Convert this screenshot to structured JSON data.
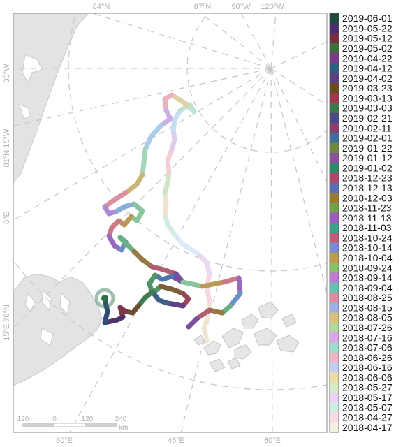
{
  "map": {
    "top_labels": [
      "84°N",
      "87°N",
      "90°W",
      "120°W"
    ],
    "bottom_labels": [
      "30°E",
      "45°E",
      "60°E"
    ],
    "left_labels": [
      "30°W",
      "81°N 15°W",
      "0°E",
      "15°E 78°N"
    ],
    "scale_bar": {
      "ticks": [
        "120",
        "0",
        "120",
        "240"
      ],
      "unit": "km"
    },
    "track_colors": [
      "#f0e6cf",
      "#f5d5dc",
      "#e6d6f2",
      "#d7eafa",
      "#cfe9e3",
      "#ede0c8",
      "#c9e3c3",
      "#f3c9d0",
      "#dcc7ec",
      "#bfdcf0",
      "#b7e0cb",
      "#dccd9a",
      "#eaa8b4",
      "#c7a7e3",
      "#a3c8ea",
      "#9ad2b3",
      "#c6ad6a",
      "#d98494",
      "#a57fcf",
      "#7ba7d8",
      "#7cbf93",
      "#b18f45",
      "#c96b7b",
      "#8a5bb8",
      "#5a86c4",
      "#5ea777",
      "#8c6b32",
      "#a84d62",
      "#6b3c96",
      "#3d689f",
      "#3f8a57",
      "#6d4f22",
      "#8c3449",
      "#522a77",
      "#2c4f80",
      "#2d6e40",
      "#5a3c17",
      "#6e2236",
      "#3f1e5d",
      "#1f3b63"
    ],
    "final_marker_color": "#2d7048"
  },
  "legend": {
    "dates": [
      "2019-06-01",
      "2019-05-22",
      "2019-05-12",
      "2019-05-02",
      "2019-04-22",
      "2019-04-12",
      "2019-04-02",
      "2019-03-23",
      "2019-03-13",
      "2019-03-03",
      "2019-02-21",
      "2019-02-11",
      "2019-02-01",
      "2019-01-22",
      "2019-01-12",
      "2019-01-02",
      "2018-12-23",
      "2018-12-13",
      "2018-12-03",
      "2018-11-23",
      "2018-11-13",
      "2018-11-03",
      "2018-10-24",
      "2018-10-14",
      "2018-10-04",
      "2018-09-24",
      "2018-09-14",
      "2018-09-04",
      "2018-08-25",
      "2018-08-15",
      "2018-08-05",
      "2018-07-26",
      "2018-07-16",
      "2018-07-06",
      "2018-06-26",
      "2018-06-16",
      "2018-06-06",
      "2018-05-27",
      "2018-05-17",
      "2018-05-07",
      "2018-04-27",
      "2018-04-17"
    ],
    "swatch_colors": [
      "#1f4a3c",
      "#4a2f6e",
      "#7a2d3e",
      "#3f6f3a",
      "#7b3a8a",
      "#2f5f7f",
      "#5b3f82",
      "#6b4a1e",
      "#a2364f",
      "#3d7a4b",
      "#4a4a8a",
      "#8a3f6d",
      "#3e6fa0",
      "#6f8a3c",
      "#8c4f9c",
      "#2f8a6a",
      "#b0476a",
      "#5a6fb3",
      "#9a7a2f",
      "#6fa04a",
      "#a05abf",
      "#3fa08a",
      "#c45a7a",
      "#7a8ad0",
      "#bf9a4a",
      "#8ac06a",
      "#c07ad8",
      "#6ac0b0",
      "#e08aa0",
      "#a0aee6",
      "#d8c07a",
      "#b0da98",
      "#dca6ec",
      "#a0dccc",
      "#f0b4c4",
      "#c4ccf2",
      "#ecdcaa",
      "#d4ecc4",
      "#ecd0f6",
      "#d0ece6",
      "#f8dce4",
      "#f4f0e2"
    ]
  }
}
